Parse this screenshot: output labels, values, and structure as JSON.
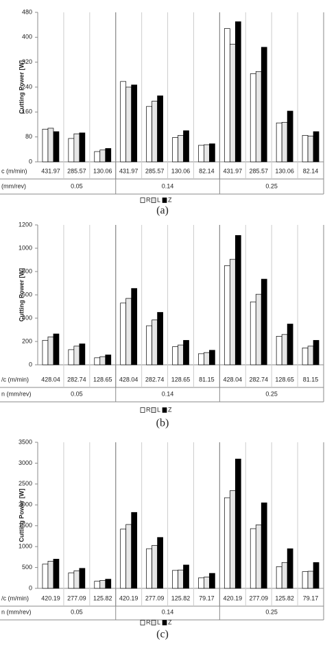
{
  "chart_data": [
    {
      "type": "bar",
      "y_label": "Cutting Power [W]",
      "row_labels": [
        "c (m/min)",
        "(mm/rev)"
      ],
      "caption": "(a)",
      "groups": [
        {
          "label": "0.05",
          "categories": [
            "431.97",
            "285.57",
            "130.06"
          ]
        },
        {
          "label": "0.14",
          "categories": [
            "431.97",
            "285.57",
            "130.06",
            "82.14"
          ]
        },
        {
          "label": "0.25",
          "categories": [
            "431.97",
            "285.57",
            "130.06",
            "82.14"
          ]
        }
      ],
      "series": [
        {
          "name": "R",
          "color": "#ffffff",
          "values": [
            105,
            75,
            33,
            258,
            178,
            78,
            53,
            428,
            283,
            125,
            85
          ]
        },
        {
          "name": "L",
          "color": "#e6e6e6",
          "values": [
            108,
            90,
            38,
            240,
            195,
            85,
            55,
            378,
            290,
            127,
            83
          ]
        },
        {
          "name": "Z",
          "color": "#000000",
          "values": [
            97,
            93,
            43,
            247,
            212,
            100,
            58,
            450,
            368,
            163,
            97
          ]
        }
      ],
      "ylim": [
        0,
        480
      ],
      "yticks": [
        0,
        80,
        160,
        240,
        320,
        400,
        480
      ]
    },
    {
      "type": "bar",
      "y_label": "Cutting Power [W]",
      "row_labels": [
        "/c (m/min)",
        "n (mm/rev)"
      ],
      "caption": "(b)",
      "groups": [
        {
          "label": "0.05",
          "categories": [
            "428.04",
            "282.74",
            "128.65"
          ]
        },
        {
          "label": "0.14",
          "categories": [
            "428.04",
            "282.74",
            "128.65",
            "81.15"
          ]
        },
        {
          "label": "0.25",
          "categories": [
            "428.04",
            "282.74",
            "128.65",
            "81.15"
          ]
        }
      ],
      "series": [
        {
          "name": "R",
          "color": "#ffffff",
          "values": [
            210,
            130,
            60,
            530,
            335,
            155,
            95,
            850,
            540,
            245,
            145
          ]
        },
        {
          "name": "L",
          "color": "#e6e6e6",
          "values": [
            240,
            160,
            70,
            570,
            385,
            170,
            105,
            905,
            605,
            260,
            160
          ]
        },
        {
          "name": "Z",
          "color": "#000000",
          "values": [
            265,
            180,
            85,
            655,
            450,
            210,
            125,
            1110,
            735,
            350,
            210
          ]
        }
      ],
      "ylim": [
        0,
        1200
      ],
      "yticks": [
        0,
        200,
        400,
        600,
        800,
        1000,
        1200
      ]
    },
    {
      "type": "bar",
      "y_label": "Cutting Power [W]",
      "row_labels": [
        "/c (m/min)",
        "n (mm/rev)"
      ],
      "caption": "(c)",
      "groups": [
        {
          "label": "0.05",
          "categories": [
            "420.19",
            "277.09",
            "125.82"
          ]
        },
        {
          "label": "0.14",
          "categories": [
            "420.19",
            "277.09",
            "125.82",
            "79.17"
          ]
        },
        {
          "label": "0.25",
          "categories": [
            "420.19",
            "277.09",
            "125.82",
            "79.17"
          ]
        }
      ],
      "series": [
        {
          "name": "R",
          "color": "#ffffff",
          "values": [
            580,
            370,
            170,
            1420,
            950,
            430,
            250,
            2170,
            1430,
            520,
            400
          ]
        },
        {
          "name": "L",
          "color": "#e6e6e6",
          "values": [
            650,
            420,
            190,
            1530,
            1030,
            440,
            270,
            2340,
            1520,
            620,
            410
          ]
        },
        {
          "name": "Z",
          "color": "#000000",
          "values": [
            700,
            480,
            220,
            1820,
            1220,
            560,
            360,
            3100,
            2050,
            950,
            620
          ]
        }
      ],
      "ylim": [
        0,
        3500
      ],
      "yticks": [
        0,
        500,
        1000,
        1500,
        2000,
        2500,
        3000,
        3500
      ]
    }
  ]
}
